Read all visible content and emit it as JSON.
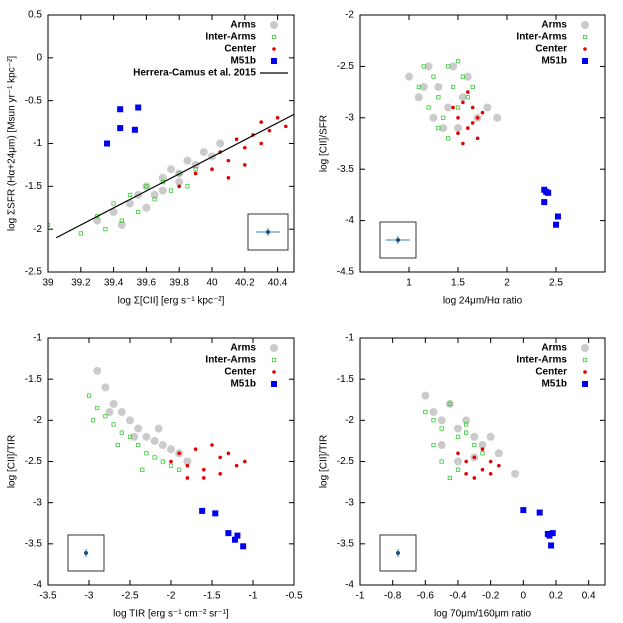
{
  "chart_data": [
    {
      "type": "scatter",
      "xlabel": "log Σ[CII]  [erg s⁻¹ kpc⁻²]",
      "ylabel": "log ΣSFR (Hα+24μm) [Msun yr⁻¹ kpc⁻²]",
      "xlim": [
        39,
        40.5
      ],
      "xticks": [
        39,
        39.2,
        39.4,
        39.6,
        39.8,
        40,
        40.2,
        40.4
      ],
      "ylim": [
        -2.5,
        0.5
      ],
      "yticks": [
        -2.5,
        -2,
        -1.5,
        -1,
        -0.5,
        0,
        0.5
      ],
      "series": [
        {
          "name": "Arms",
          "color": "#a0a0a0",
          "marker": "circle",
          "x": [
            39.3,
            39.4,
            39.5,
            39.55,
            39.6,
            39.65,
            39.7,
            39.75,
            39.8,
            39.85,
            39.9,
            39.95,
            40.0,
            40.05,
            39.45,
            39.6,
            39.7,
            39.8
          ],
          "values": [
            -1.9,
            -1.8,
            -1.7,
            -1.6,
            -1.5,
            -1.6,
            -1.4,
            -1.3,
            -1.35,
            -1.2,
            -1.25,
            -1.1,
            -1.15,
            -1.0,
            -1.95,
            -1.75,
            -1.55,
            -1.45
          ]
        },
        {
          "name": "Inter-Arms",
          "color": "#33cc33",
          "marker": "open-square",
          "x": [
            39.0,
            39.2,
            39.3,
            39.35,
            39.4,
            39.45,
            39.5,
            39.55,
            39.6,
            39.65,
            39.7,
            39.75,
            39.8,
            39.85,
            39.9
          ],
          "values": [
            -1.95,
            -2.05,
            -1.85,
            -2.0,
            -1.7,
            -1.9,
            -1.6,
            -1.8,
            -1.5,
            -1.65,
            -1.45,
            -1.55,
            -1.35,
            -1.5,
            -1.3
          ]
        },
        {
          "name": "Center",
          "color": "#e00000",
          "marker": "dot",
          "x": [
            39.8,
            39.9,
            40.0,
            40.05,
            40.1,
            40.15,
            40.2,
            40.25,
            40.3,
            40.35,
            40.4,
            40.45,
            40.1,
            40.2,
            40.3
          ],
          "values": [
            -1.5,
            -1.35,
            -1.3,
            -1.1,
            -1.2,
            -0.95,
            -1.05,
            -0.9,
            -0.75,
            -0.85,
            -0.7,
            -0.8,
            -1.4,
            -1.25,
            -1.0
          ]
        },
        {
          "name": "M51b",
          "color": "#0000ee",
          "marker": "square",
          "x": [
            39.36,
            39.44,
            39.44,
            39.53,
            39.55
          ],
          "values": [
            -1.0,
            -0.6,
            -0.82,
            -0.84,
            -0.58
          ]
        },
        {
          "name": "Herrera-Camus et al. 2015",
          "color": "#000000",
          "marker": "line",
          "x": [
            39.05,
            40.5
          ],
          "values": [
            -2.1,
            -0.66
          ]
        }
      ]
    },
    {
      "type": "scatter",
      "xlabel": "log 24μm/Hα ratio",
      "ylabel": "log [CII]/SFR",
      "xlim": [
        0.5,
        3
      ],
      "xticks": [
        1,
        1.5,
        2,
        2.5
      ],
      "ylim": [
        -4.5,
        -2
      ],
      "yticks": [
        -4.5,
        -4,
        -3.5,
        -3,
        -2.5,
        -2
      ],
      "series": [
        {
          "name": "Arms",
          "color": "#a0a0a0",
          "marker": "circle",
          "x": [
            1.0,
            1.1,
            1.2,
            1.25,
            1.3,
            1.4,
            1.45,
            1.5,
            1.55,
            1.6,
            1.7,
            1.8,
            1.9,
            1.35,
            1.15
          ],
          "values": [
            -2.6,
            -2.8,
            -2.5,
            -3.0,
            -2.7,
            -2.9,
            -2.5,
            -3.1,
            -2.8,
            -2.6,
            -3.0,
            -2.9,
            -3.0,
            -3.1,
            -2.7
          ]
        },
        {
          "name": "Inter-Arms",
          "color": "#33cc33",
          "marker": "open-square",
          "x": [
            1.1,
            1.15,
            1.2,
            1.25,
            1.3,
            1.35,
            1.4,
            1.45,
            1.5,
            1.55,
            1.6,
            1.65,
            1.3,
            1.4,
            1.5
          ],
          "values": [
            -2.7,
            -2.5,
            -2.9,
            -2.6,
            -2.8,
            -3.0,
            -2.5,
            -2.7,
            -2.9,
            -2.6,
            -2.8,
            -2.7,
            -3.1,
            -3.2,
            -2.45
          ]
        },
        {
          "name": "Center",
          "color": "#e00000",
          "marker": "dot",
          "x": [
            1.45,
            1.5,
            1.55,
            1.6,
            1.65,
            1.7,
            1.75,
            1.5,
            1.6,
            1.7,
            1.55,
            1.65
          ],
          "values": [
            -2.9,
            -3.0,
            -2.85,
            -3.1,
            -2.9,
            -3.0,
            -2.95,
            -3.15,
            -2.75,
            -3.2,
            -3.25,
            -3.05
          ]
        },
        {
          "name": "M51b",
          "color": "#0000ee",
          "marker": "square",
          "x": [
            2.38,
            2.4,
            2.42,
            2.38,
            2.52,
            2.5
          ],
          "values": [
            -3.7,
            -3.72,
            -3.73,
            -3.82,
            -3.96,
            -4.04
          ]
        }
      ]
    },
    {
      "type": "scatter",
      "xlabel": "log TIR  [erg s⁻¹ cm⁻² sr⁻¹]",
      "ylabel": "log [CII]/TIR",
      "xlim": [
        -3.5,
        -0.5
      ],
      "xticks": [
        -3.5,
        -3,
        -2.5,
        -2,
        -1.5,
        -1,
        -0.5
      ],
      "ylim": [
        -4,
        -1
      ],
      "yticks": [
        -4,
        -3.5,
        -3,
        -2.5,
        -2,
        -1.5,
        -1
      ],
      "series": [
        {
          "name": "Arms",
          "color": "#a0a0a0",
          "marker": "circle",
          "x": [
            -2.9,
            -2.8,
            -2.7,
            -2.6,
            -2.5,
            -2.4,
            -2.3,
            -2.2,
            -2.1,
            -2.0,
            -1.9,
            -1.8,
            -2.75,
            -2.45,
            -2.15
          ],
          "values": [
            -1.4,
            -1.6,
            -1.8,
            -1.9,
            -2.0,
            -2.1,
            -2.2,
            -2.25,
            -2.3,
            -2.35,
            -2.4,
            -2.5,
            -1.9,
            -2.2,
            -2.1
          ]
        },
        {
          "name": "Inter-Arms",
          "color": "#33cc33",
          "marker": "open-square",
          "x": [
            -3.0,
            -2.9,
            -2.8,
            -2.7,
            -2.6,
            -2.5,
            -2.4,
            -2.3,
            -2.2,
            -2.1,
            -2.0,
            -1.9,
            -2.95,
            -2.65,
            -2.35
          ],
          "values": [
            -1.7,
            -1.85,
            -1.95,
            -2.05,
            -2.15,
            -2.2,
            -2.3,
            -2.4,
            -2.45,
            -2.5,
            -2.55,
            -2.6,
            -2.0,
            -2.3,
            -2.6
          ]
        },
        {
          "name": "Center",
          "color": "#e00000",
          "marker": "dot",
          "x": [
            -2.0,
            -1.9,
            -1.8,
            -1.7,
            -1.6,
            -1.5,
            -1.4,
            -1.3,
            -1.2,
            -1.1,
            -1.6,
            -1.4,
            -1.8
          ],
          "values": [
            -2.5,
            -2.4,
            -2.55,
            -2.35,
            -2.6,
            -2.3,
            -2.45,
            -2.4,
            -2.55,
            -2.5,
            -2.7,
            -2.65,
            -2.7
          ]
        },
        {
          "name": "M51b",
          "color": "#0000ee",
          "marker": "square",
          "x": [
            -1.62,
            -1.46,
            -1.3,
            -1.19,
            -1.22,
            -1.12
          ],
          "values": [
            -3.1,
            -3.13,
            -3.37,
            -3.4,
            -3.45,
            -3.53
          ]
        }
      ]
    },
    {
      "type": "scatter",
      "xlabel": "log 70μm/160μm ratio",
      "ylabel": "log [CII]/TIR",
      "xlim": [
        -1,
        0.5
      ],
      "xticks": [
        -1,
        -0.8,
        -0.6,
        -0.4,
        -0.2,
        0,
        0.2,
        0.4
      ],
      "ylim": [
        -4,
        -1
      ],
      "yticks": [
        -4,
        -3.5,
        -3,
        -2.5,
        -2,
        -1.5,
        -1
      ],
      "series": [
        {
          "name": "Arms",
          "color": "#a0a0a0",
          "marker": "circle",
          "x": [
            -0.6,
            -0.55,
            -0.5,
            -0.45,
            -0.4,
            -0.35,
            -0.3,
            -0.25,
            -0.2,
            -0.15,
            -0.5,
            -0.4,
            -0.3,
            -0.05
          ],
          "values": [
            -1.7,
            -1.9,
            -2.0,
            -1.8,
            -2.1,
            -2.0,
            -2.2,
            -2.3,
            -2.2,
            -2.4,
            -2.3,
            -2.5,
            -2.45,
            -2.65
          ]
        },
        {
          "name": "Inter-Arms",
          "color": "#33cc33",
          "marker": "open-square",
          "x": [
            -0.6,
            -0.55,
            -0.5,
            -0.45,
            -0.4,
            -0.35,
            -0.3,
            -0.25,
            -0.5,
            -0.4,
            -0.55,
            -0.45,
            -0.35
          ],
          "values": [
            -1.9,
            -2.0,
            -2.1,
            -1.8,
            -2.2,
            -2.05,
            -2.3,
            -2.4,
            -2.5,
            -2.6,
            -2.3,
            -2.7,
            -2.15
          ]
        },
        {
          "name": "Center",
          "color": "#e00000",
          "marker": "dot",
          "x": [
            -0.4,
            -0.35,
            -0.3,
            -0.25,
            -0.2,
            -0.15,
            -0.3,
            -0.2,
            -0.25,
            -0.35
          ],
          "values": [
            -2.4,
            -2.5,
            -2.45,
            -2.6,
            -2.5,
            -2.55,
            -2.7,
            -2.65,
            -2.35,
            -2.65
          ]
        },
        {
          "name": "M51b",
          "color": "#0000ee",
          "marker": "square",
          "x": [
            0.0,
            0.1,
            0.15,
            0.18,
            0.17,
            0.16
          ],
          "values": [
            -3.09,
            -3.12,
            -3.38,
            -3.37,
            -3.52,
            -3.4
          ]
        }
      ]
    }
  ]
}
